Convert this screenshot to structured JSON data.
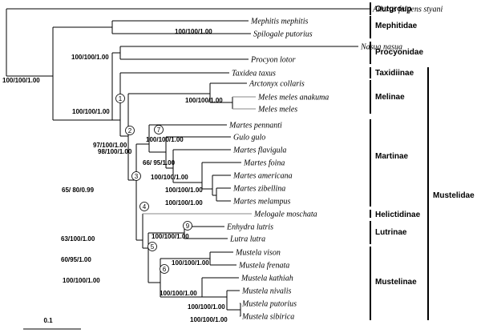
{
  "taxa": [
    {
      "label": "Ailurus fulgens styani",
      "grey": false
    },
    {
      "label": "Mephitis mephitis",
      "grey": false
    },
    {
      "label": "Spilogale putorius",
      "grey": false
    },
    {
      "label": "Nasua nasua",
      "grey": false
    },
    {
      "label": "Procyon lotor",
      "grey": false
    },
    {
      "label": "Taxidea taxus",
      "grey": false
    },
    {
      "label": "Arctonyx collaris",
      "grey": false
    },
    {
      "label": "Meles meles anakuma",
      "grey": true
    },
    {
      "label": "Meles meles",
      "grey": true
    },
    {
      "label": "Martes pennanti",
      "grey": false
    },
    {
      "label": "Gulo gulo",
      "grey": false
    },
    {
      "label": "Martes flavigula",
      "grey": false
    },
    {
      "label": "Martes foina",
      "grey": false
    },
    {
      "label": "Martes americana",
      "grey": false
    },
    {
      "label": "Martes zibellina",
      "grey": false
    },
    {
      "label": "Martes melampus",
      "grey": false
    },
    {
      "label": "Melogale moschata",
      "grey": true
    },
    {
      "label": "Enhydra lutris",
      "grey": false
    },
    {
      "label": "Lutra lutra",
      "grey": false
    },
    {
      "label": "Mustela vison",
      "grey": false
    },
    {
      "label": "Mustela frenata",
      "grey": false
    },
    {
      "label": "Mustela kathiah",
      "grey": false
    },
    {
      "label": "Mustela nivalis",
      "grey": false
    },
    {
      "label": "Mustela putorius",
      "grey": false
    },
    {
      "label": "Mustela sibirica",
      "grey": false
    }
  ],
  "support_values": [
    "100/100/1.00",
    "100/100/1.00",
    "100/100/1.00",
    "100/100/1.00",
    "97/100/1.00",
    "100/100/1.00",
    "98/100/1.00",
    "100/100/1.00",
    "66/ 95/1.00",
    "100/100/1.00",
    "100/100/1.00",
    "100/100/1.00",
    "65/ 80/0.99",
    "63/100/1.00",
    "100/100/1.00",
    "60/95/1.00",
    "100/100/1.00",
    "100/100/1.00",
    "100/100/1.00",
    "100/100/1.00",
    "100/100/1.00"
  ],
  "node_numbers": [
    "1",
    "2",
    "3",
    "4",
    "5",
    "6",
    "7",
    "9"
  ],
  "groups": [
    "Outgroup",
    "Mephitidae",
    "Procyonidae",
    "Taxidiinae",
    "Melinae",
    "Martinae",
    "Helictidinae",
    "Lutrinae",
    "Mustelinae",
    "Mustelidae"
  ],
  "scale_bar": {
    "label": "0.1",
    "value": 0.1
  }
}
